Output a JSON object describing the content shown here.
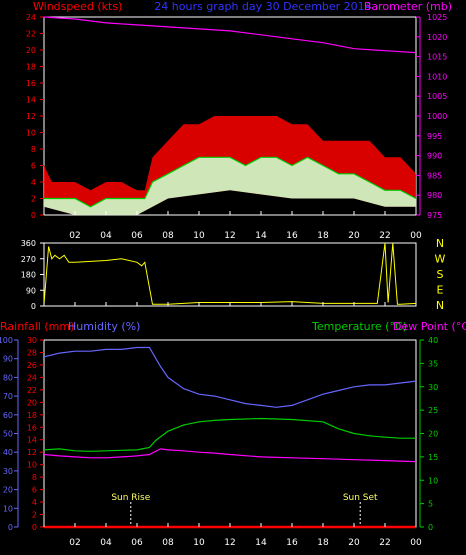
{
  "header": {
    "left_label": "Windspeed (kts)",
    "center_label": "24 hours graph day  30 December 2014",
    "right_label": "Barometer (mb)"
  },
  "time_axis": [
    "02",
    "04",
    "06",
    "08",
    "10",
    "12",
    "14",
    "16",
    "18",
    "20",
    "22",
    "00"
  ],
  "colors": {
    "background": "#000000",
    "windspeed_axis": "#ff0000",
    "barometer": "#ff00ff",
    "gust": "#ff0000",
    "avg_wind": "#00cc00",
    "wind_fill": "#ccffcc",
    "direction": "#ffff00",
    "humidity": "#6666ff",
    "temperature": "#00cc00",
    "dewpoint": "#ff00ff",
    "rainfall": "#ff0000",
    "frame": "#ffffff"
  },
  "chart_data": [
    {
      "type": "line",
      "id": "wind_baro",
      "y_left": {
        "ticks": [
          0,
          2,
          4,
          6,
          8,
          10,
          12,
          14,
          16,
          18,
          20,
          22,
          24
        ],
        "range": [
          0,
          24
        ]
      },
      "y_right": {
        "ticks": [
          975,
          980,
          985,
          990,
          995,
          1000,
          1005,
          1010,
          1015,
          1020,
          1025
        ],
        "range": [
          975,
          1025
        ]
      },
      "series": [
        {
          "name": "Barometer",
          "x_hours": [
            0,
            2,
            4,
            6,
            8,
            10,
            12,
            14,
            16,
            18,
            20,
            22,
            24
          ],
          "values": [
            1025,
            1024.5,
            1023.5,
            1023,
            1022.5,
            1022,
            1021.5,
            1020.5,
            1019.5,
            1018.5,
            1017,
            1016.5,
            1016
          ]
        },
        {
          "name": "Gust",
          "x_hours": [
            0,
            0.5,
            1,
            2,
            3,
            4,
            5,
            6,
            6.5,
            7,
            8,
            9,
            10,
            11,
            12,
            13,
            14,
            15,
            16,
            17,
            18,
            19,
            20,
            21,
            22,
            23,
            24
          ],
          "values": [
            6,
            4,
            4,
            4,
            3,
            4,
            4,
            3,
            3,
            7,
            9,
            11,
            11,
            12,
            12,
            12,
            12,
            12,
            11,
            11,
            9,
            9,
            9,
            9,
            7,
            7,
            5
          ]
        },
        {
          "name": "Average",
          "x_hours": [
            0,
            1,
            2,
            3,
            4,
            5,
            6,
            6.5,
            7,
            8,
            9,
            10,
            11,
            12,
            13,
            14,
            15,
            16,
            17,
            18,
            19,
            20,
            21,
            22,
            23,
            24
          ],
          "values": [
            2,
            2,
            2,
            1,
            2,
            2,
            2,
            2,
            4,
            5,
            6,
            7,
            7,
            7,
            6,
            7,
            7,
            6,
            7,
            6,
            5,
            5,
            4,
            3,
            3,
            2
          ]
        },
        {
          "name": "Min",
          "x_hours": [
            0,
            2,
            4,
            6,
            7,
            8,
            12,
            16,
            18,
            20,
            22,
            24
          ],
          "values": [
            1,
            0,
            0,
            0,
            1,
            2,
            3,
            2,
            2,
            2,
            1,
            1
          ]
        }
      ]
    },
    {
      "type": "line",
      "id": "direction",
      "y_left": {
        "ticks": [
          0,
          90,
          180,
          270,
          360
        ],
        "range": [
          0,
          360
        ]
      },
      "y_right_labels": [
        "N",
        "W",
        "S",
        "E",
        "N"
      ],
      "series": [
        {
          "name": "Direction",
          "x_hours": [
            0,
            0.3,
            0.5,
            0.7,
            1,
            1.3,
            1.6,
            2,
            4,
            5,
            6,
            6.3,
            6.5,
            7,
            8,
            10,
            12,
            14,
            16,
            18,
            20,
            21.5,
            22,
            22.2,
            22.5,
            22.8,
            23,
            24
          ],
          "values": [
            10,
            340,
            270,
            290,
            270,
            290,
            250,
            250,
            260,
            270,
            250,
            230,
            250,
            10,
            10,
            20,
            20,
            20,
            25,
            15,
            15,
            15,
            360,
            20,
            360,
            10,
            10,
            15
          ]
        }
      ]
    },
    {
      "type": "line",
      "id": "temp_hum",
      "header": {
        "rainfall_label": "Rainfall (mm)",
        "humidity_label": "Humidity (%)",
        "temp_label": "Temperature (°C)",
        "dew_label": "Dew Point (°C)"
      },
      "y_humidity": {
        "ticks": [
          0,
          10,
          20,
          30,
          40,
          50,
          60,
          70,
          80,
          90,
          100
        ],
        "range": [
          0,
          100
        ]
      },
      "y_rain": {
        "ticks": [
          0,
          2,
          4,
          6,
          8,
          10,
          12,
          14,
          16,
          18,
          20,
          22,
          24,
          26,
          28,
          30
        ],
        "range": [
          0,
          30
        ]
      },
      "y_temp": {
        "ticks": [
          0,
          5,
          10,
          15,
          20,
          25,
          30,
          35,
          40
        ],
        "range": [
          0,
          40
        ]
      },
      "annotations": [
        {
          "label": "Sun Rise",
          "x_hours": 5.6
        },
        {
          "label": "Sun Set",
          "x_hours": 20.4
        }
      ],
      "series": [
        {
          "name": "Humidity",
          "x_hours": [
            0,
            0.5,
            1,
            2,
            3,
            4,
            5,
            6,
            6.8,
            7.5,
            8,
            9,
            10,
            11,
            12,
            13,
            14,
            15,
            16,
            17,
            18,
            19,
            20,
            21,
            22,
            23,
            24
          ],
          "values": [
            91,
            92,
            93,
            94,
            94,
            95,
            95,
            96,
            96,
            86,
            80,
            74,
            71,
            70,
            68,
            66,
            65,
            64,
            65,
            68,
            71,
            73,
            75,
            76,
            76,
            77,
            78
          ]
        },
        {
          "name": "Temperature",
          "x_hours": [
            0,
            1,
            2,
            3,
            4,
            5,
            6,
            6.8,
            7.2,
            8,
            9,
            10,
            11,
            12,
            14,
            16,
            18,
            19,
            20,
            21,
            22,
            23,
            24
          ],
          "values": [
            16.5,
            16.7,
            16.3,
            16.2,
            16.3,
            16.4,
            16.5,
            17.0,
            18.5,
            20.5,
            21.8,
            22.5,
            22.8,
            23.0,
            23.2,
            23.0,
            22.5,
            21.0,
            20.0,
            19.5,
            19.2,
            19.0,
            19.0
          ]
        },
        {
          "name": "Dew Point",
          "x_hours": [
            0,
            1,
            2,
            3,
            4,
            5,
            6,
            6.8,
            7.5,
            8,
            9,
            10,
            11,
            12,
            14,
            16,
            18,
            19,
            20,
            21,
            22,
            23,
            24
          ],
          "values": [
            15.5,
            15.2,
            15.0,
            14.8,
            14.8,
            15.0,
            15.2,
            15.5,
            16.7,
            16.5,
            16.3,
            16.0,
            15.8,
            15.5,
            15.0,
            14.8,
            14.6,
            14.5,
            14.4,
            14.3,
            14.2,
            14.1,
            14.0
          ]
        },
        {
          "name": "Rainfall",
          "x_hours": [
            0,
            24
          ],
          "values": [
            0,
            0
          ]
        }
      ]
    }
  ]
}
